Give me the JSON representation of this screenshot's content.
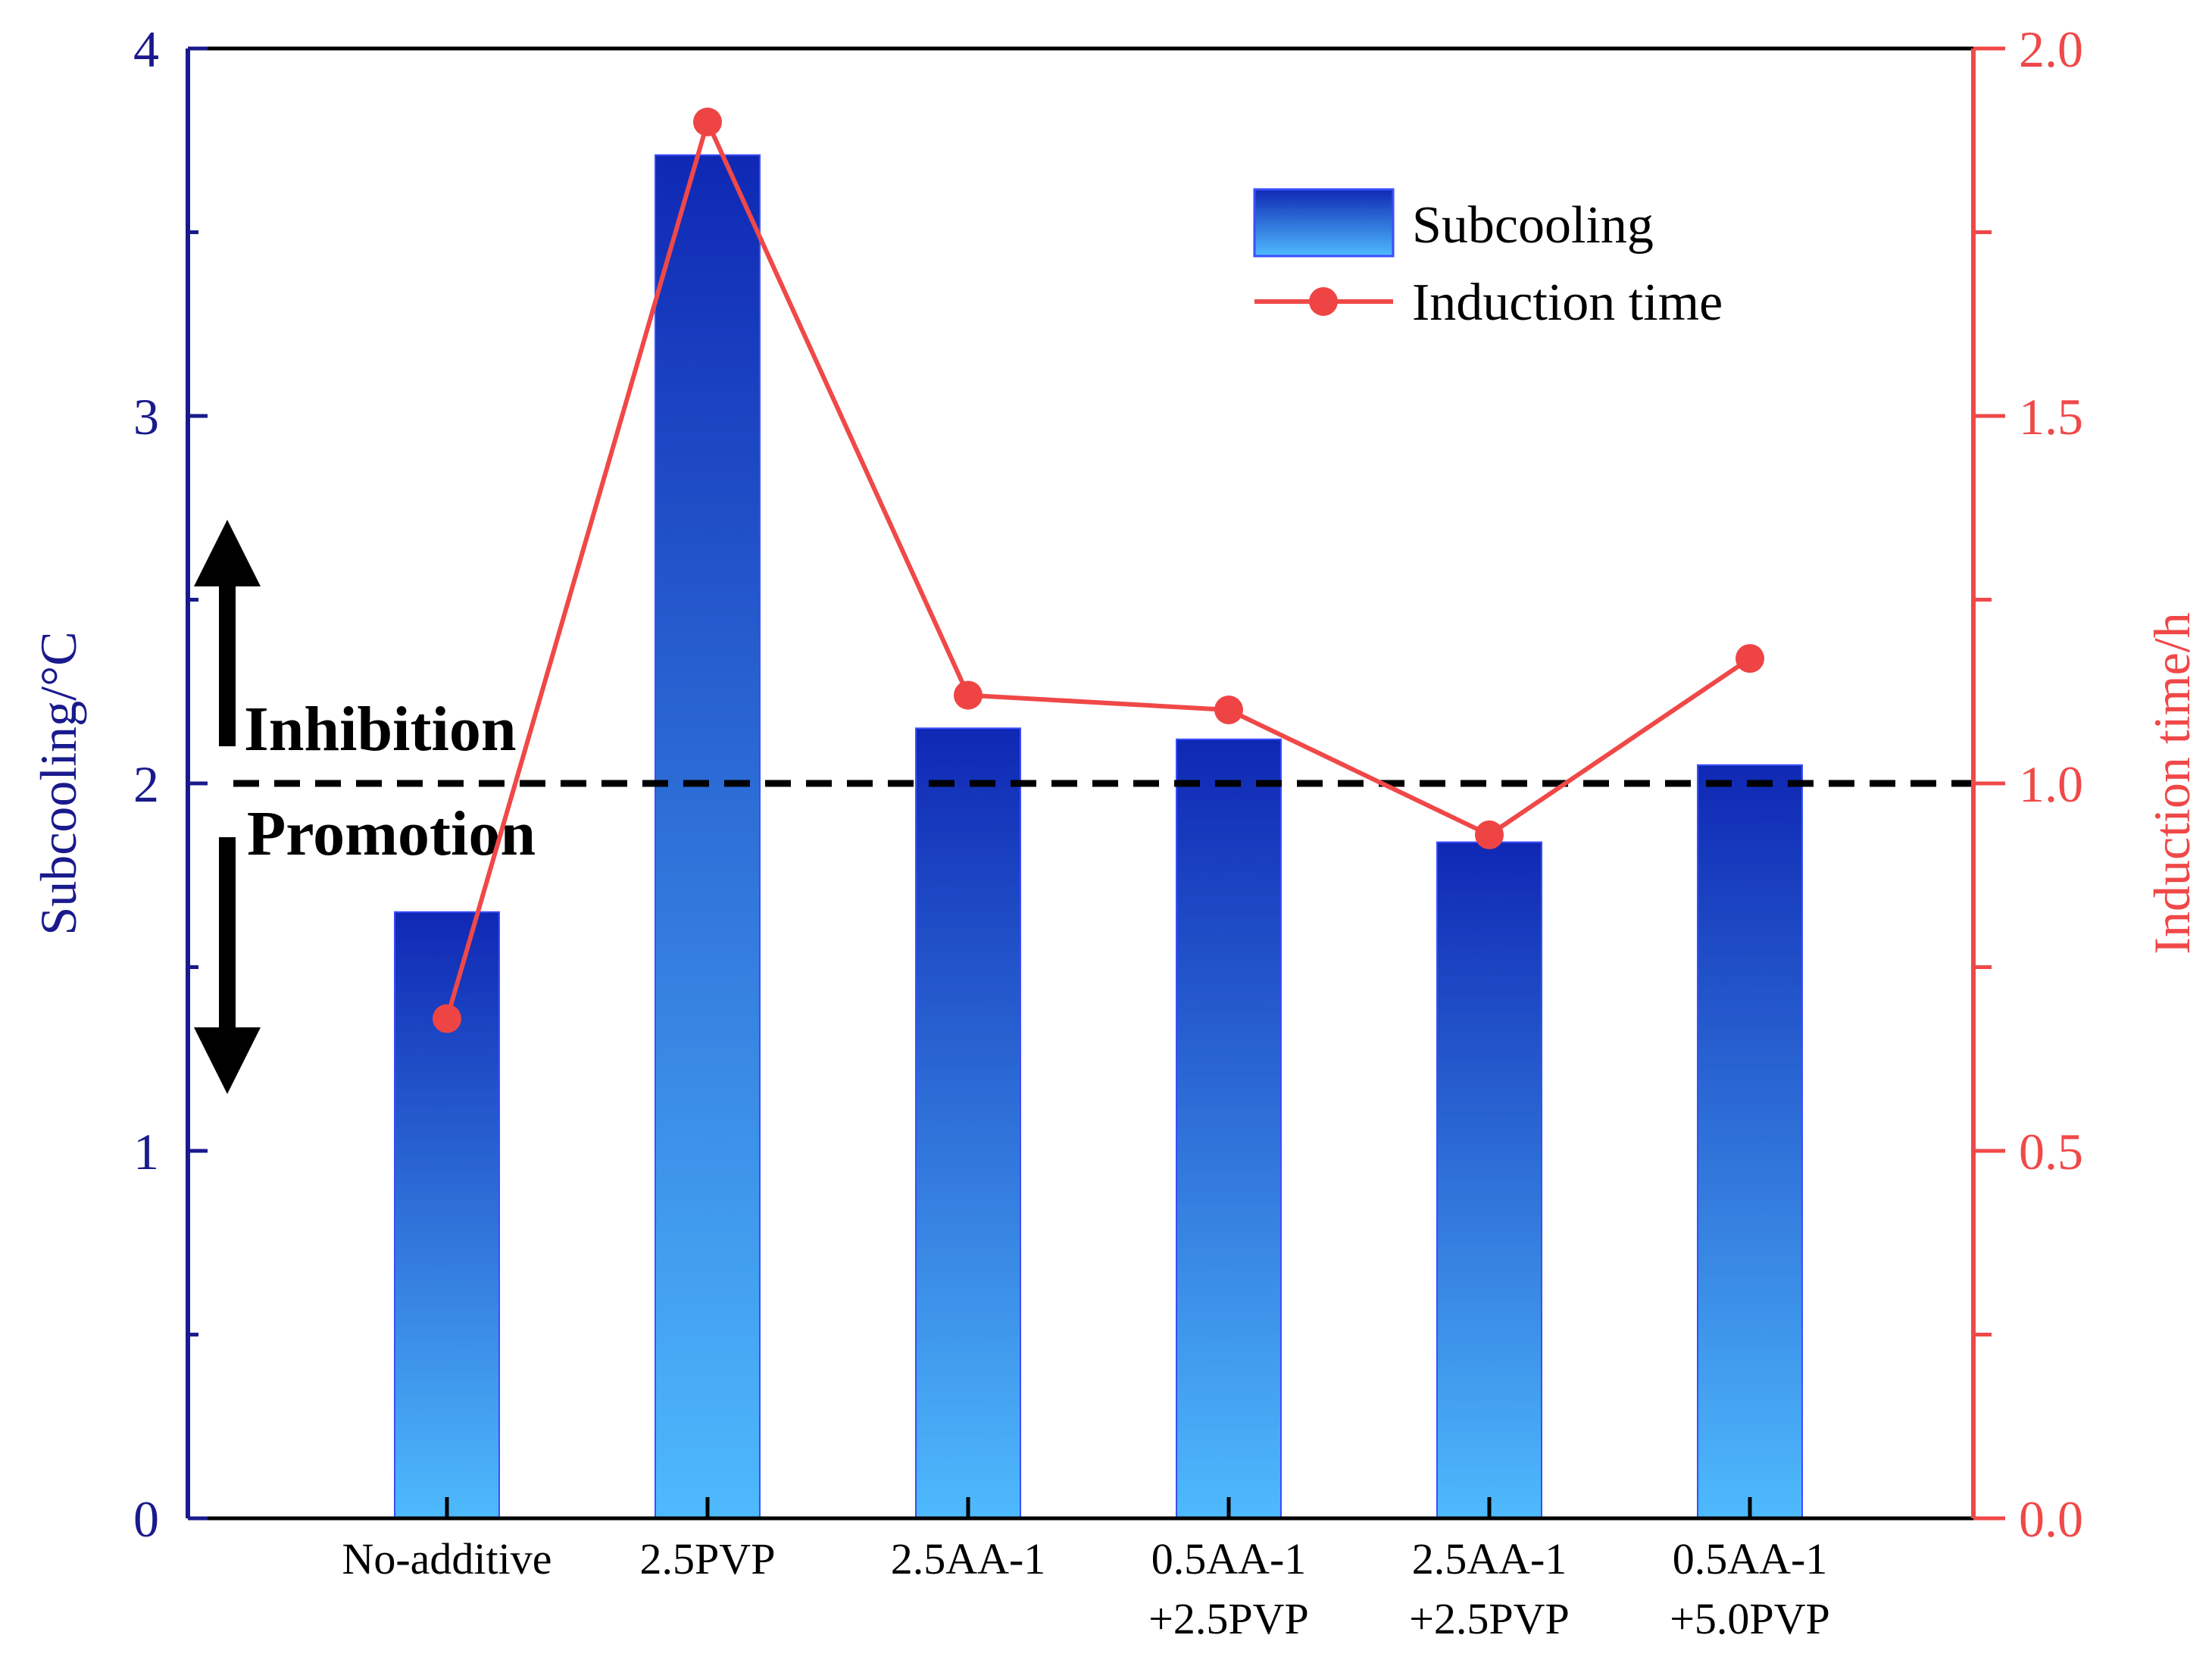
{
  "chart_data": {
    "type": "bar+line",
    "categories": [
      [
        "No-additive"
      ],
      [
        "2.5PVP"
      ],
      [
        "2.5AA-1"
      ],
      [
        "0.5AA-1",
        "+2.5PVP"
      ],
      [
        "2.5AA-1",
        "+2.5PVP"
      ],
      [
        "0.5AA-1",
        "+5.0PVP"
      ]
    ],
    "series": [
      {
        "name": "Subcooling",
        "axis": "left",
        "kind": "bar",
        "values": [
          1.65,
          3.71,
          2.15,
          2.12,
          1.84,
          2.05
        ]
      },
      {
        "name": "Induction time",
        "axis": "right",
        "kind": "line",
        "values": [
          0.68,
          1.9,
          1.12,
          1.1,
          0.93,
          1.17
        ]
      }
    ],
    "left_axis": {
      "label": "Subcooling/°C",
      "range": [
        0,
        4
      ],
      "major_ticks": [
        0,
        1,
        2,
        3,
        4
      ],
      "minor_step": 0.5,
      "tick_labels": [
        "0",
        "1",
        "2",
        "3",
        "4"
      ]
    },
    "right_axis": {
      "label": "Induction time/h",
      "range": [
        0,
        2
      ],
      "major_ticks": [
        0,
        0.5,
        1,
        1.5,
        2
      ],
      "minor_step": 0.25,
      "tick_labels": [
        "0.0",
        "0.5",
        "1.0",
        "1.5",
        "2.0"
      ]
    },
    "threshold": {
      "value": 2,
      "axis": "left",
      "style": "dashed"
    },
    "annotations": {
      "above": "Inhibition",
      "below": "Promotion"
    },
    "legend": {
      "position": "top-right",
      "entries": [
        "Subcooling",
        "Induction time"
      ]
    },
    "colors": {
      "left_axis": "#1a1a8c",
      "right_axis": "#f04848",
      "bar_top": "#0f28b4",
      "bar_bottom": "#4ebafd",
      "line": "#f04848",
      "marker": "#ef4444",
      "frame": "#000000"
    }
  }
}
